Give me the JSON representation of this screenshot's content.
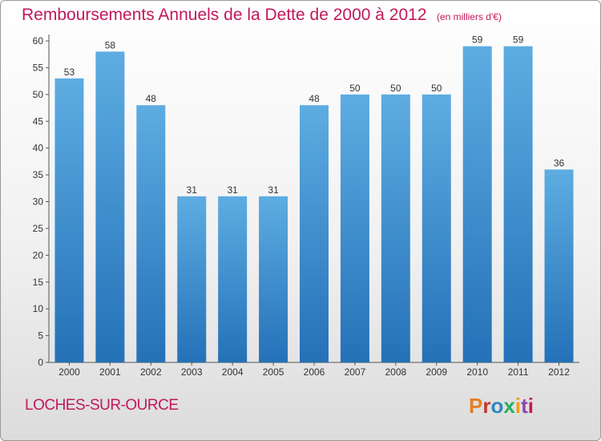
{
  "chart_data": {
    "type": "bar",
    "title": "Remboursements Annuels de la Dette de 2000 à 2012",
    "unit_note": "(en milliers d'€)",
    "categories": [
      "2000",
      "2001",
      "2002",
      "2003",
      "2004",
      "2005",
      "2006",
      "2007",
      "2008",
      "2009",
      "2010",
      "2011",
      "2012"
    ],
    "values": [
      53,
      58,
      48,
      31,
      31,
      31,
      48,
      50,
      50,
      50,
      59,
      59,
      36
    ],
    "ylim": [
      0,
      60
    ],
    "yticks": [
      0,
      5,
      10,
      15,
      20,
      25,
      30,
      35,
      40,
      45,
      50,
      55,
      60
    ],
    "grid": false,
    "bar_color_top": "#5dade2",
    "bar_color_bottom": "#2471b8"
  },
  "footer": {
    "city": "LOCHES-SUR-OURCE",
    "logo_text": "Proxiti",
    "logo_colors": [
      "#e67e22",
      "#c0392b",
      "#2e86c1",
      "#27ae60",
      "#f39c12",
      "#8e44ad",
      "#c2185b"
    ]
  }
}
